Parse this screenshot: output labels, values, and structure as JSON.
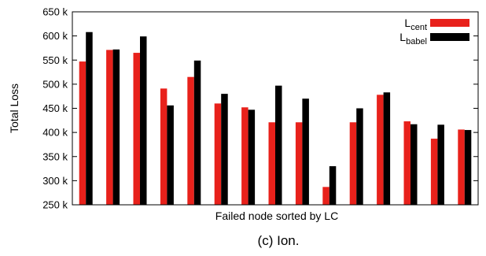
{
  "chart_data": {
    "type": "bar",
    "xlabel": "Failed node sorted by LC",
    "ylabel": "Total Loss",
    "caption": "(c) Ion.",
    "ylim": [
      250000,
      650000
    ],
    "yticks": [
      250000,
      300000,
      350000,
      400000,
      450000,
      500000,
      550000,
      600000,
      650000
    ],
    "ytick_labels": [
      "250 k",
      "300 k",
      "350 k",
      "400 k",
      "450 k",
      "500 k",
      "550 k",
      "600 k",
      "650 k"
    ],
    "grid": false,
    "legend_position": "top-right",
    "series": [
      {
        "name": "L",
        "name_sub": "cent",
        "color": "#e8211b",
        "values": [
          547000,
          571000,
          565000,
          491000,
          515000,
          460000,
          452000,
          421000,
          421000,
          287000,
          421000,
          478000,
          423000,
          387000,
          406000
        ]
      },
      {
        "name": "L",
        "name_sub": "babel",
        "color": "#000000",
        "values": [
          608000,
          572000,
          599000,
          456000,
          549000,
          480000,
          447000,
          497000,
          470000,
          330000,
          450000,
          483000,
          417000,
          416000,
          405000
        ]
      }
    ]
  }
}
